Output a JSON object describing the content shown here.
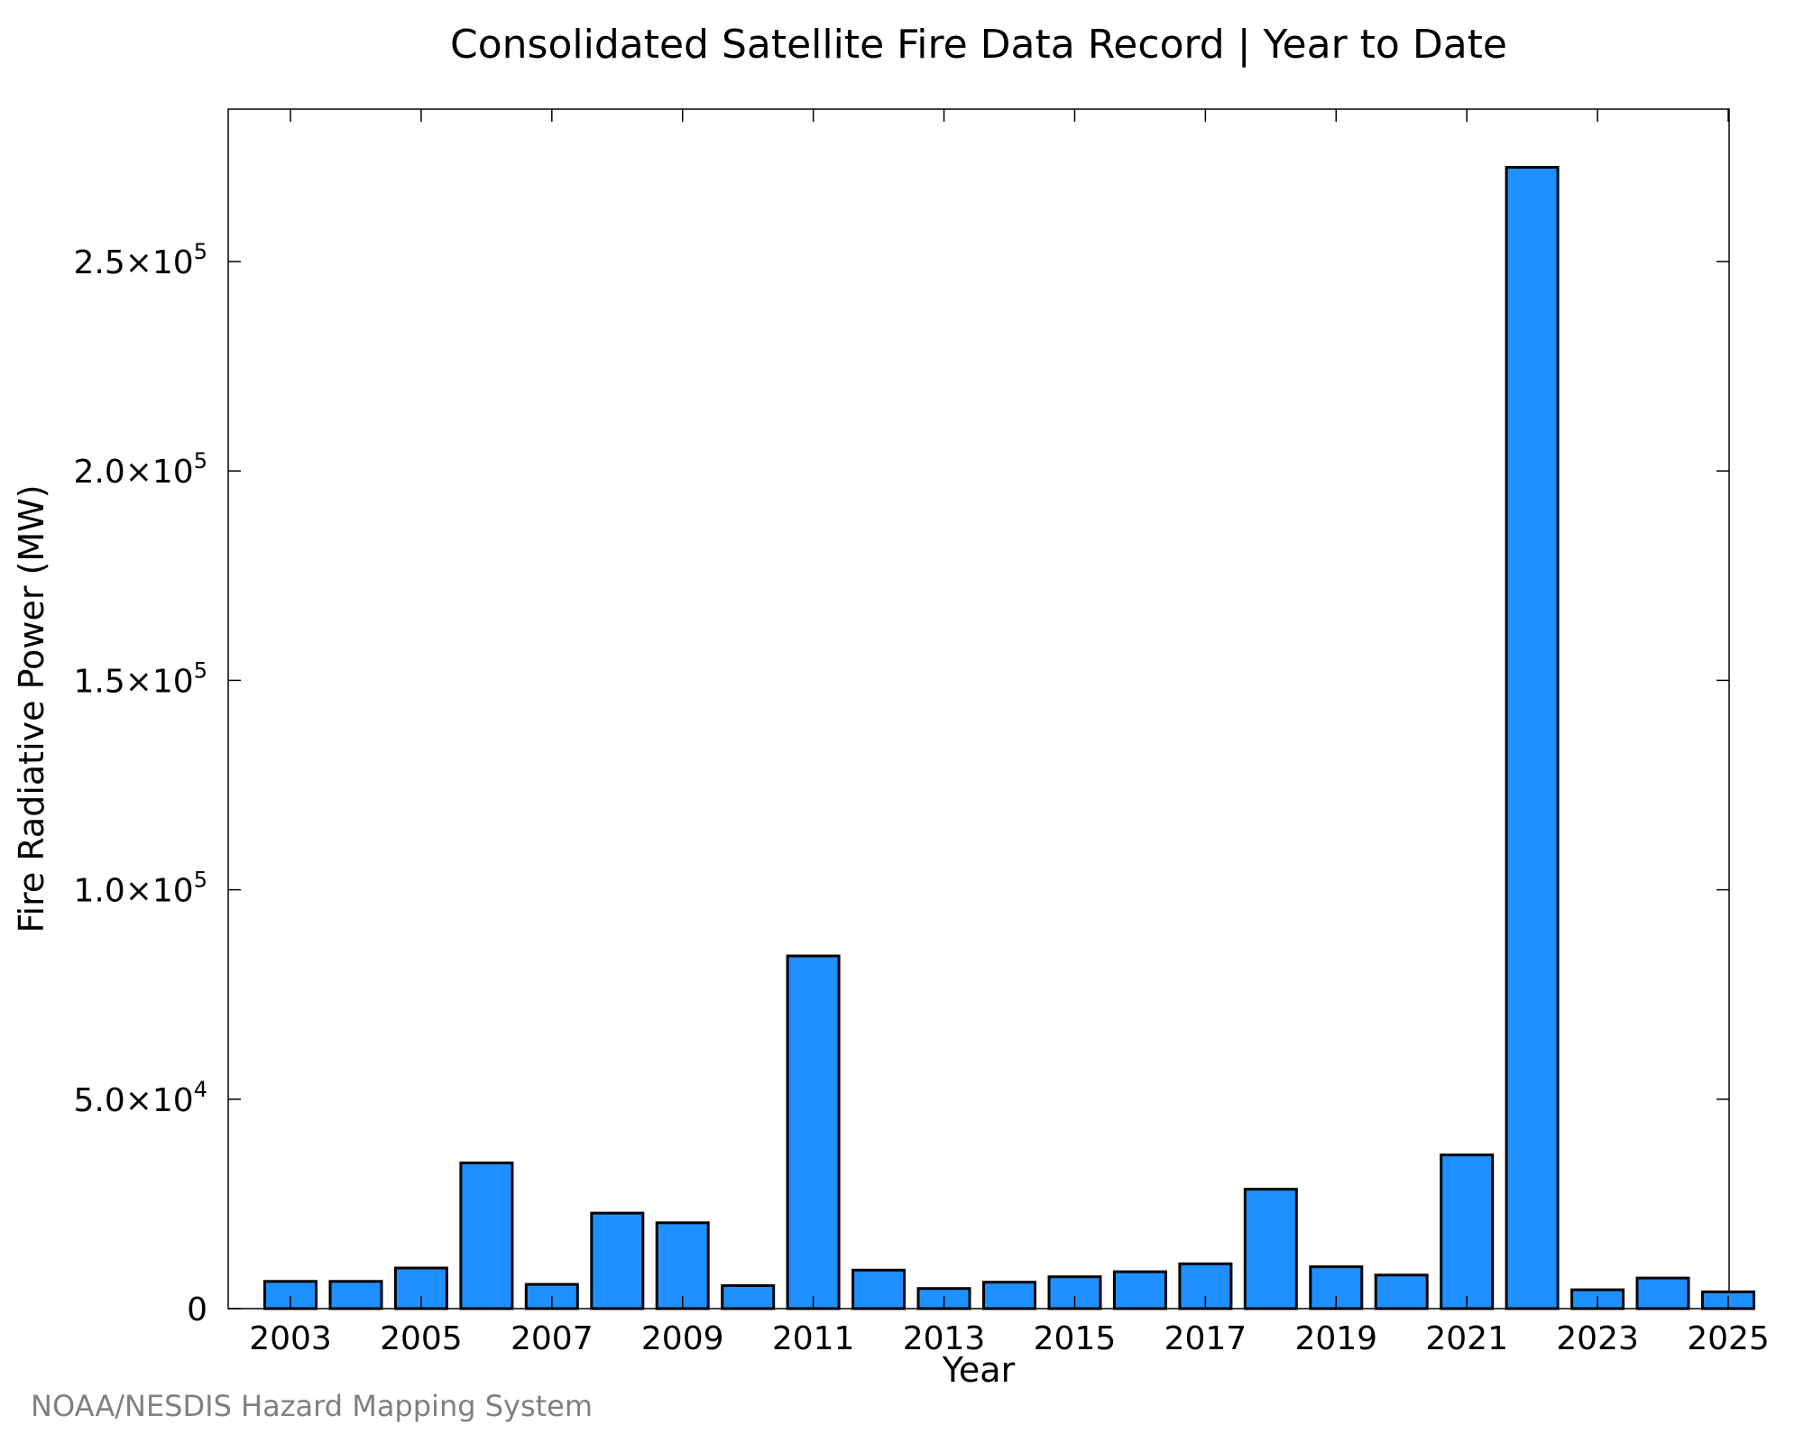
{
  "chart_data": {
    "type": "bar",
    "title": "Consolidated Satellite Fire Data Record | Year to Date",
    "xlabel": "Year",
    "ylabel": "Fire Radiative Power (MW)",
    "categories": [
      "2003",
      "2004",
      "2005",
      "2006",
      "2007",
      "2008",
      "2009",
      "2010",
      "2011",
      "2012",
      "2013",
      "2014",
      "2015",
      "2016",
      "2017",
      "2018",
      "2019",
      "2020",
      "2021",
      "2022",
      "2023",
      "2024",
      "2025"
    ],
    "values": [
      6500,
      6500,
      9700,
      34800,
      5800,
      22800,
      20500,
      5500,
      84200,
      9200,
      4800,
      6300,
      7600,
      8800,
      10700,
      28500,
      10000,
      8000,
      36700,
      272500,
      4500,
      7300,
      4000
    ],
    "x_tick_labels": [
      "2003",
      "2005",
      "2007",
      "2009",
      "2011",
      "2013",
      "2015",
      "2017",
      "2019",
      "2021",
      "2023",
      "2025"
    ],
    "y_ticks": [
      {
        "value": 0,
        "mantissa": "0",
        "exponent": ""
      },
      {
        "value": 50000,
        "mantissa": "5.0×10",
        "exponent": "4"
      },
      {
        "value": 100000,
        "mantissa": "1.0×10",
        "exponent": "5"
      },
      {
        "value": 150000,
        "mantissa": "1.5×10",
        "exponent": "5"
      },
      {
        "value": 200000,
        "mantissa": "2.0×10",
        "exponent": "5"
      },
      {
        "value": 250000,
        "mantissa": "2.5×10",
        "exponent": "5"
      }
    ],
    "ylim": [
      0,
      286000
    ],
    "bar_color": "#1E90FF",
    "bar_edge_color": "#000000",
    "grid": false,
    "legend": "none"
  },
  "credit": "NOAA/NESDIS Hazard Mapping System"
}
